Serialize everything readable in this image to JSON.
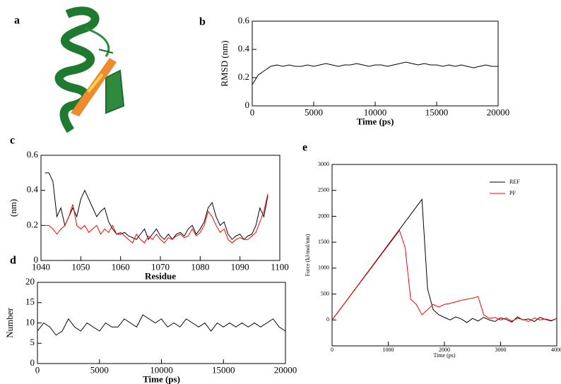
{
  "panel_a": {
    "label": "a"
  },
  "chart_data": [
    {
      "type": "line",
      "panel": "b",
      "xlabel": "Time (ps)",
      "ylabel": "RMSD (nm)",
      "x": [
        0,
        500,
        1000,
        1500,
        2000,
        2500,
        3000,
        3500,
        4000,
        4500,
        5000,
        5500,
        6000,
        6500,
        7000,
        7500,
        8000,
        8500,
        9000,
        9500,
        10000,
        10500,
        11000,
        11500,
        12000,
        12500,
        13000,
        13500,
        14000,
        14500,
        15000,
        15500,
        16000,
        16500,
        17000,
        17500,
        18000,
        18500,
        19000,
        19500,
        20000
      ],
      "series": [
        {
          "name": null,
          "color": "#000000",
          "values": [
            0.15,
            0.22,
            0.25,
            0.28,
            0.29,
            0.28,
            0.29,
            0.28,
            0.28,
            0.29,
            0.28,
            0.29,
            0.3,
            0.29,
            0.28,
            0.29,
            0.29,
            0.3,
            0.29,
            0.28,
            0.29,
            0.29,
            0.28,
            0.29,
            0.3,
            0.31,
            0.3,
            0.29,
            0.3,
            0.29,
            0.29,
            0.28,
            0.29,
            0.28,
            0.29,
            0.28,
            0.27,
            0.28,
            0.29,
            0.28,
            0.28
          ]
        }
      ],
      "xlim": [
        0,
        20000
      ],
      "ylim": [
        0,
        0.6
      ],
      "xticks": [
        0,
        5000,
        10000,
        15000,
        20000
      ],
      "yticks": [
        0,
        0.2,
        0.4,
        0.6
      ]
    },
    {
      "type": "line",
      "panel": "c",
      "xlabel": "Residue",
      "ylabel": "(nm)",
      "x": [
        1041,
        1042,
        1043,
        1044,
        1045,
        1046,
        1047,
        1048,
        1049,
        1050,
        1051,
        1052,
        1053,
        1054,
        1055,
        1056,
        1057,
        1058,
        1059,
        1060,
        1061,
        1062,
        1063,
        1064,
        1065,
        1066,
        1067,
        1068,
        1069,
        1070,
        1071,
        1072,
        1073,
        1074,
        1075,
        1076,
        1077,
        1078,
        1079,
        1080,
        1081,
        1082,
        1083,
        1084,
        1085,
        1086,
        1087,
        1088,
        1089,
        1090,
        1091,
        1092,
        1093,
        1094,
        1095,
        1096,
        1097
      ],
      "series": [
        {
          "name": null,
          "color": "#000000",
          "values": [
            0.5,
            0.5,
            0.45,
            0.25,
            0.3,
            0.2,
            0.25,
            0.3,
            0.25,
            0.35,
            0.4,
            0.35,
            0.3,
            0.25,
            0.28,
            0.3,
            0.22,
            0.18,
            0.15,
            0.15,
            0.16,
            0.14,
            0.13,
            0.12,
            0.15,
            0.18,
            0.12,
            0.15,
            0.18,
            0.14,
            0.12,
            0.15,
            0.12,
            0.15,
            0.16,
            0.14,
            0.18,
            0.2,
            0.15,
            0.18,
            0.22,
            0.3,
            0.33,
            0.25,
            0.2,
            0.22,
            0.15,
            0.12,
            0.14,
            0.15,
            0.12,
            0.14,
            0.15,
            0.2,
            0.3,
            0.25,
            0.37
          ]
        },
        {
          "name": null,
          "color": "#ff0000",
          "values": [
            0.2,
            0.2,
            0.18,
            0.15,
            0.18,
            0.2,
            0.25,
            0.32,
            0.2,
            0.18,
            0.2,
            0.16,
            0.18,
            0.2,
            0.15,
            0.18,
            0.16,
            0.2,
            0.15,
            0.16,
            0.14,
            0.12,
            0.1,
            0.15,
            0.12,
            0.1,
            0.14,
            0.12,
            0.15,
            0.12,
            0.1,
            0.13,
            0.12,
            0.14,
            0.15,
            0.13,
            0.14,
            0.18,
            0.14,
            0.16,
            0.2,
            0.28,
            0.25,
            0.2,
            0.16,
            0.18,
            0.12,
            0.1,
            0.12,
            0.13,
            0.12,
            0.12,
            0.14,
            0.16,
            0.22,
            0.28,
            0.38
          ]
        }
      ],
      "xlim": [
        1040,
        1100
      ],
      "ylim": [
        0,
        0.6
      ],
      "xticks": [
        1040,
        1050,
        1060,
        1070,
        1080,
        1090,
        1100
      ],
      "yticks": [
        0,
        0.2,
        0.4,
        0.6
      ]
    },
    {
      "type": "line",
      "panel": "d",
      "xlabel": "Time (ps)",
      "ylabel": "Number",
      "x": [
        0,
        500,
        1000,
        1500,
        2000,
        2500,
        3000,
        3500,
        4000,
        4500,
        5000,
        5500,
        6000,
        6500,
        7000,
        7500,
        8000,
        8500,
        9000,
        9500,
        10000,
        10500,
        11000,
        11500,
        12000,
        12500,
        13000,
        13500,
        14000,
        14500,
        15000,
        15500,
        16000,
        16500,
        17000,
        17500,
        18000,
        18500,
        19000,
        19500,
        20000
      ],
      "series": [
        {
          "name": null,
          "color": "#000000",
          "values": [
            8,
            10,
            9,
            7,
            8,
            11,
            9,
            8,
            10,
            9,
            8,
            10,
            9,
            9,
            11,
            10,
            9,
            12,
            11,
            10,
            11,
            9,
            10,
            9,
            11,
            10,
            9,
            10,
            8,
            10,
            9,
            10,
            9,
            10,
            9,
            10,
            9,
            10,
            11,
            9,
            8
          ]
        }
      ],
      "xlim": [
        0,
        20000
      ],
      "ylim": [
        0,
        20
      ],
      "xticks": [
        0,
        5000,
        10000,
        15000,
        20000
      ],
      "yticks": [
        0,
        5,
        10,
        15,
        20
      ]
    },
    {
      "type": "line",
      "panel": "e",
      "xlabel": "Time (ps)",
      "ylabel": "Force (kJ/mol/nm)",
      "x": [
        0,
        100,
        200,
        300,
        400,
        500,
        600,
        700,
        800,
        900,
        1000,
        1100,
        1200,
        1300,
        1400,
        1500,
        1600,
        1700,
        1800,
        1900,
        2000,
        2100,
        2200,
        2300,
        2400,
        2500,
        2600,
        2700,
        2800,
        2900,
        3000,
        3100,
        3200,
        3300,
        3400,
        3500,
        3600,
        3700,
        3800,
        3900,
        4000
      ],
      "series": [
        {
          "name": "REF",
          "color": "#000000",
          "values": [
            0,
            145,
            290,
            436,
            582,
            727,
            873,
            1018,
            1164,
            1309,
            1455,
            1600,
            1745,
            1891,
            2036,
            2182,
            2327,
            600,
            200,
            100,
            50,
            0,
            60,
            20,
            -50,
            30,
            -20,
            50,
            0,
            -30,
            40,
            10,
            -40,
            60,
            0,
            20,
            -30,
            50,
            10,
            -20,
            30
          ]
        },
        {
          "name": "PF",
          "color": "#ff0000",
          "values": [
            0,
            144,
            288,
            432,
            576,
            720,
            864,
            1008,
            1152,
            1296,
            1440,
            1584,
            1728,
            1400,
            400,
            300,
            100,
            200,
            300,
            250,
            300,
            320,
            350,
            380,
            400,
            420,
            450,
            100,
            30,
            50,
            0,
            40,
            -20,
            30,
            10,
            -30,
            40,
            0,
            20,
            -10,
            30
          ]
        }
      ],
      "xlim": [
        0,
        4000
      ],
      "ylim": [
        -500,
        3000
      ],
      "xticks": [
        0,
        1000,
        2000,
        3000,
        4000
      ],
      "yticks": [
        0,
        500,
        1000,
        1500,
        2000,
        2500,
        3000
      ],
      "legend": "upper right"
    }
  ]
}
